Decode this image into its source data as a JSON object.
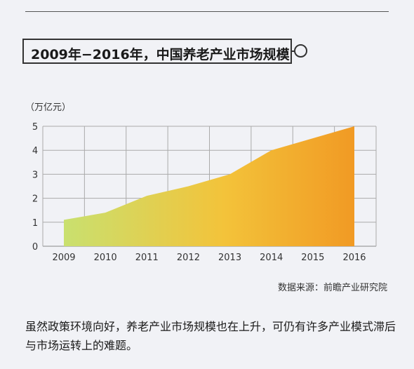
{
  "header": {
    "title": "2009年−2016年，中国养老产业市场规模"
  },
  "chart_data": {
    "type": "area",
    "title": "2009年−2016年，中国养老产业市场规模",
    "ylabel": "（万亿元）",
    "xlabel": "",
    "x": [
      "2009",
      "2010",
      "2011",
      "2012",
      "2013",
      "2014",
      "2015",
      "2016"
    ],
    "values": [
      1.1,
      1.4,
      2.1,
      2.5,
      3.0,
      4.0,
      4.5,
      5.0
    ],
    "y_ticks": [
      "0",
      "1",
      "2",
      "3",
      "4",
      "5"
    ],
    "ylim": [
      0,
      5
    ],
    "grid": true,
    "colors": {
      "start": "#c9e06f",
      "mid": "#f3c33a",
      "end": "#f19a24",
      "grid": "#aaaaaa"
    }
  },
  "footer": {
    "source": "数据来源：前瞻产业研究院",
    "description": "虽然政策环境向好，养老产业市场规模也在上升，可仍有许多产业模式滞后与市场运转上的难题。"
  }
}
